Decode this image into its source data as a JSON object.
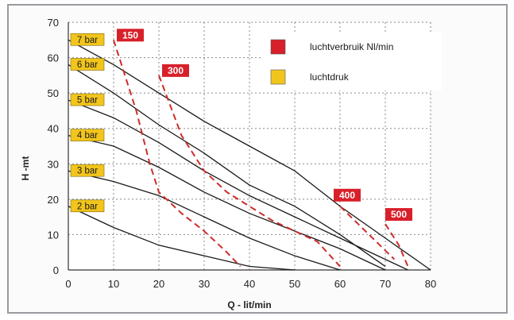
{
  "chart_data": {
    "type": "line",
    "xlabel": "Q - lit/min",
    "ylabel": "H -mt",
    "xlim": [
      0,
      80
    ],
    "ylim": [
      0,
      70
    ],
    "x_ticks": [
      0,
      10,
      20,
      30,
      40,
      50,
      60,
      70,
      80
    ],
    "y_ticks": [
      0,
      10,
      20,
      30,
      40,
      50,
      60,
      70
    ],
    "grid": true,
    "legend_position": "top-right",
    "legend": [
      {
        "label": "luchtverbruik Nl/min",
        "color": "#d8202a"
      },
      {
        "label": "luchtdruk",
        "color": "#f2c51c"
      }
    ],
    "pressure_series": [
      {
        "name": "7 bar",
        "x": [
          0,
          10,
          20,
          30,
          40,
          50,
          60,
          70,
          80
        ],
        "y": [
          65,
          58,
          50,
          42,
          35,
          28,
          18,
          9,
          0
        ]
      },
      {
        "name": "6 bar",
        "x": [
          0,
          10,
          20,
          30,
          40,
          50,
          60,
          70
        ],
        "y": [
          58,
          50,
          41,
          33,
          24,
          18,
          10,
          1
        ]
      },
      {
        "name": "5 bar",
        "x": [
          0,
          10,
          20,
          30,
          40,
          50,
          60,
          70,
          75
        ],
        "y": [
          48,
          43,
          36,
          28,
          21,
          15,
          9,
          3,
          0
        ]
      },
      {
        "name": "4 bar",
        "x": [
          0,
          10,
          20,
          30,
          40,
          50,
          60,
          70
        ],
        "y": [
          38,
          35,
          29,
          22,
          16,
          11,
          6,
          0
        ]
      },
      {
        "name": "3 bar",
        "x": [
          0,
          10,
          20,
          30,
          40,
          50,
          60
        ],
        "y": [
          28,
          25,
          21,
          15,
          9,
          4,
          0
        ]
      },
      {
        "name": "2 bar",
        "x": [
          0,
          10,
          20,
          30,
          40,
          50
        ],
        "y": [
          18,
          12,
          7,
          4,
          1,
          0
        ]
      }
    ],
    "air_consumption_series": [
      {
        "name": "150",
        "x": [
          10,
          15,
          18,
          20,
          25,
          30,
          35,
          38
        ],
        "y": [
          65,
          45,
          30,
          22,
          16,
          11,
          5,
          1
        ]
      },
      {
        "name": "300",
        "x": [
          20,
          25,
          30,
          35,
          40,
          45,
          50,
          55,
          60
        ],
        "y": [
          55,
          38,
          28,
          22,
          18,
          14,
          11,
          8,
          1
        ]
      },
      {
        "name": "400",
        "x": [
          60,
          64,
          68,
          72
        ],
        "y": [
          18,
          13,
          8,
          3
        ]
      },
      {
        "name": "500",
        "x": [
          70,
          73,
          75
        ],
        "y": [
          13,
          7,
          1
        ]
      }
    ]
  }
}
